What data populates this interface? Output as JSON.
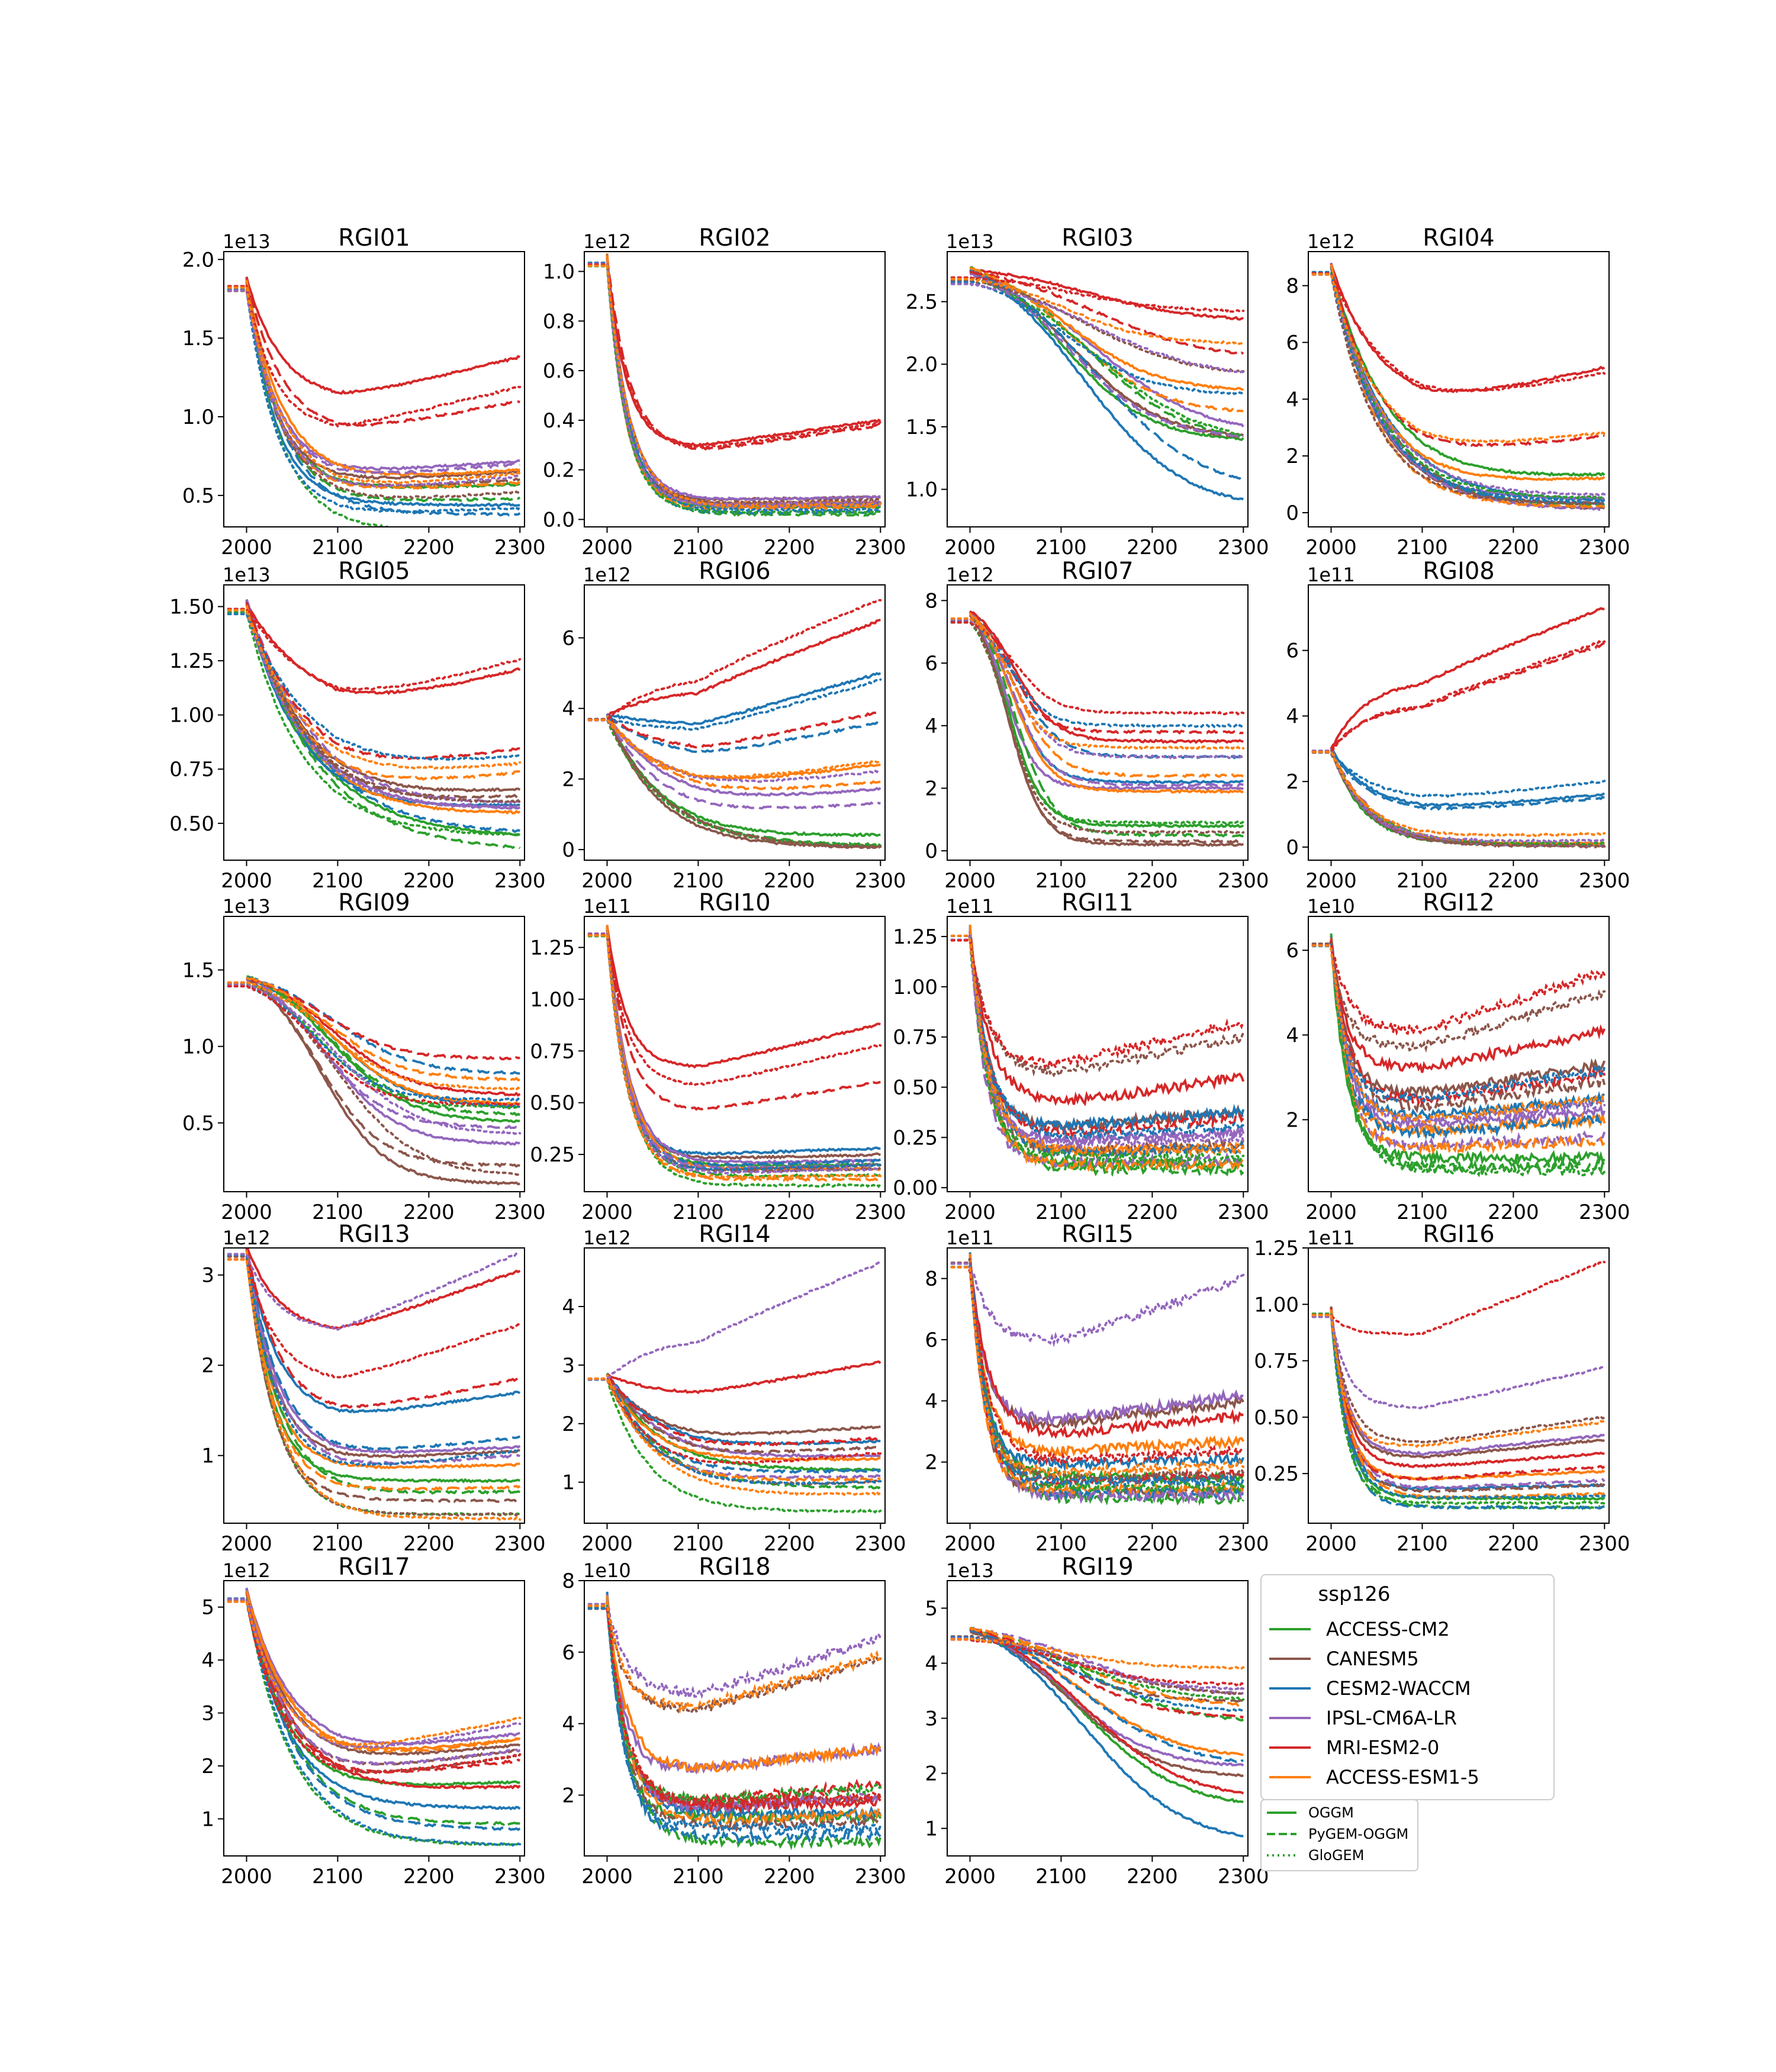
{
  "chart_data": {
    "type": "line",
    "colors": {
      "ACCESS-CM2": "#2ca02c",
      "CANESM5": "#8c564b",
      "CESM2-WACCM": "#1f77b4",
      "IPSL-CM6A-LR": "#9467bd",
      "MRI-ESM2-0": "#d62728",
      "ACCESS-ESM1-5": "#ff7f0e"
    },
    "legend": {
      "title": "ssp126",
      "gcms": [
        "ACCESS-CM2",
        "CANESM5",
        "CESM2-WACCM",
        "IPSL-CM6A-LR",
        "MRI-ESM2-0",
        "ACCESS-ESM1-5"
      ],
      "models": [
        "OGGM",
        "PyGEM-OGGM",
        "GloGEM"
      ],
      "placement": "lower-right"
    },
    "xticks": [
      2000,
      2100,
      2200,
      2300
    ],
    "xlim": [
      1975,
      2305
    ],
    "panels": [
      {
        "title": "RGI01",
        "mult": "1e13",
        "ylim": [
          0.3,
          2.05
        ],
        "yticks": [
          "0.5",
          "1.0",
          "1.5",
          "2.0"
        ],
        "yvals": [
          0.5,
          1.0,
          1.5,
          2.0
        ],
        "ystart": 1.87,
        "ystart_main": 1.96,
        "dstart": 1.96,
        "gstart": 1.87,
        "kind": "decay",
        "ends": {
          "OGGM": [
            0.57,
            0.65,
            0.44,
            0.72,
            1.38,
            0.66
          ],
          "PyGEM-OGGM": [
            0.48,
            0.6,
            0.38,
            0.7,
            1.1,
            0.58
          ],
          "GloGEM": [
            0.27,
            0.52,
            0.42,
            0.62,
            1.19,
            0.64
          ]
        },
        "tau": 35
      },
      {
        "title": "RGI02",
        "mult": "1e12",
        "ylim": [
          -0.03,
          1.08
        ],
        "yticks": [
          "0.0",
          "0.2",
          "0.4",
          "0.6",
          "0.8",
          "1.0"
        ],
        "yvals": [
          0,
          0.2,
          0.4,
          0.6,
          0.8,
          1.0
        ],
        "ystart": 1.06,
        "kind": "decay",
        "ends": {
          "OGGM": [
            0.05,
            0.09,
            0.06,
            0.09,
            0.4,
            0.07
          ],
          "PyGEM-OGGM": [
            0.02,
            0.07,
            0.03,
            0.06,
            0.38,
            0.05
          ],
          "GloGEM": [
            0.03,
            0.08,
            0.04,
            0.07,
            0.39,
            0.06
          ]
        },
        "tau": 22
      },
      {
        "title": "RGI03",
        "mult": "1e13",
        "ylim": [
          0.7,
          2.9
        ],
        "yticks": [
          "1.0",
          "1.5",
          "2.0",
          "2.5"
        ],
        "yvals": [
          1.0,
          1.5,
          2.0,
          2.5
        ],
        "ystart": 2.75,
        "kind": "slow",
        "ends": {
          "OGGM": [
            1.38,
            1.4,
            0.83,
            1.42,
            2.34,
            1.78
          ],
          "PyGEM-OGGM": [
            1.35,
            1.38,
            0.95,
            1.4,
            2.03,
            1.6
          ],
          "GloGEM": [
            1.34,
            1.9,
            1.75,
            1.88,
            2.42,
            2.16
          ]
        },
        "tau": 120
      },
      {
        "title": "RGI04",
        "mult": "1e12",
        "ylim": [
          -0.5,
          9.2
        ],
        "yticks": [
          "0",
          "2",
          "4",
          "6",
          "8"
        ],
        "yvals": [
          0,
          2,
          4,
          6,
          8
        ],
        "ystart": 8.7,
        "kind": "decay",
        "ends": {
          "OGGM": [
            1.3,
            0.3,
            0.4,
            0.5,
            5.1,
            1.2
          ],
          "PyGEM-OGGM": [
            0.2,
            0.1,
            0.3,
            0.1,
            2.7,
            0.2
          ],
          "GloGEM": [
            0.5,
            0.3,
            0.4,
            0.6,
            4.9,
            2.8
          ]
        },
        "tau": 55
      },
      {
        "title": "RGI05",
        "mult": "1e13",
        "ylim": [
          0.33,
          1.6
        ],
        "yticks": [
          "0.50",
          "0.75",
          "1.00",
          "1.25",
          "1.50"
        ],
        "yvals": [
          0.5,
          0.75,
          1.0,
          1.25,
          1.5
        ],
        "ystart": 1.52,
        "kind": "decay",
        "ends": {
          "OGGM": [
            0.43,
            0.65,
            0.58,
            0.56,
            1.2,
            0.54
          ],
          "PyGEM-OGGM": [
            0.37,
            0.62,
            0.44,
            0.58,
            0.84,
            0.73
          ],
          "GloGEM": [
            0.44,
            0.59,
            0.8,
            0.57,
            1.25,
            0.77
          ]
        },
        "tau": 70
      },
      {
        "title": "RGI06",
        "mult": "1e12",
        "ylim": [
          -0.3,
          7.5
        ],
        "yticks": [
          "0",
          "2",
          "4",
          "6"
        ],
        "yvals": [
          0,
          2,
          4,
          6
        ],
        "ystart": 3.8,
        "kind": "decay",
        "ends": {
          "OGGM": [
            0.4,
            0.05,
            5.0,
            1.7,
            6.5,
            2.4
          ],
          "PyGEM-OGGM": [
            0.1,
            0.05,
            3.6,
            1.3,
            3.9,
            1.9
          ],
          "GloGEM": [
            0.1,
            0.03,
            4.8,
            2.2,
            7.1,
            2.5
          ]
        },
        "tau": 60
      },
      {
        "title": "RGI07",
        "mult": "1e12",
        "ylim": [
          -0.3,
          8.5
        ],
        "yticks": [
          "0",
          "2",
          "4",
          "6",
          "8"
        ],
        "yvals": [
          0,
          2,
          4,
          6,
          8
        ],
        "ystart": 7.6,
        "kind": "slow",
        "ends": {
          "OGGM": [
            0.8,
            0.2,
            2.2,
            2.0,
            3.5,
            1.9
          ],
          "PyGEM-OGGM": [
            0.5,
            0.3,
            3.0,
            2.1,
            3.8,
            2.4
          ],
          "GloGEM": [
            0.9,
            0.6,
            4.0,
            3.0,
            4.4,
            3.3
          ]
        },
        "tau": 45
      },
      {
        "title": "RGI08",
        "mult": "1e11",
        "ylim": [
          -0.4,
          8.0
        ],
        "yticks": [
          "0",
          "2",
          "4",
          "6"
        ],
        "yvals": [
          0,
          2,
          4,
          6
        ],
        "ystart": 3.0,
        "kind": "decay",
        "ends": {
          "OGGM": [
            0.1,
            0.05,
            1.6,
            0.1,
            7.3,
            0.1
          ],
          "PyGEM-OGGM": [
            0.05,
            0.02,
            1.5,
            0.05,
            6.2,
            0.1
          ],
          "GloGEM": [
            0.1,
            0.05,
            2.0,
            0.2,
            6.3,
            0.4
          ]
        },
        "tau": 40
      },
      {
        "title": "RGI09",
        "mult": "1e13",
        "ylim": [
          0.05,
          1.85
        ],
        "yticks": [
          "0.5",
          "1.0",
          "1.5"
        ],
        "yvals": [
          0.5,
          1.0,
          1.5
        ],
        "ystart": 1.45,
        "kind": "slow",
        "ends": {
          "OGGM": [
            0.5,
            0.1,
            0.6,
            0.36,
            0.68,
            0.62
          ],
          "PyGEM-OGGM": [
            0.55,
            0.22,
            0.82,
            0.47,
            0.92,
            0.78
          ],
          "GloGEM": [
            0.6,
            0.15,
            0.65,
            0.42,
            0.62,
            0.72
          ]
        },
        "tau": 85
      },
      {
        "title": "RGI10",
        "mult": "1e11",
        "ylim": [
          0.07,
          1.4
        ],
        "yticks": [
          "0.25",
          "0.50",
          "0.75",
          "1.00",
          "1.25"
        ],
        "yvals": [
          0.25,
          0.5,
          0.75,
          1.0,
          1.25
        ],
        "ystart": 1.35,
        "kind": "decay",
        "ends": {
          "OGGM": [
            0.2,
            0.25,
            0.28,
            0.22,
            0.88,
            0.18
          ],
          "PyGEM-OGGM": [
            0.15,
            0.18,
            0.22,
            0.2,
            0.6,
            0.13
          ],
          "GloGEM": [
            0.1,
            0.2,
            0.2,
            0.18,
            0.78,
            0.15
          ]
        },
        "tau": 22
      },
      {
        "title": "RGI11",
        "mult": "1e11",
        "ylim": [
          -0.02,
          1.35
        ],
        "yticks": [
          "0.00",
          "0.25",
          "0.50",
          "0.75",
          "1.00",
          "1.25"
        ],
        "yvals": [
          0,
          0.25,
          0.5,
          0.75,
          1.0,
          1.25
        ],
        "ystart": 1.28,
        "kind": "decay",
        "ends": {
          "OGGM": [
            0.12,
            0.38,
            0.38,
            0.28,
            0.55,
            0.2
          ],
          "PyGEM-OGGM": [
            0.09,
            0.22,
            0.2,
            0.14,
            0.35,
            0.12
          ],
          "GloGEM": [
            0.15,
            0.75,
            0.3,
            0.25,
            0.82,
            0.2
          ]
        },
        "tau": 20
      },
      {
        "title": "RGI12",
        "mult": "1e10",
        "ylim": [
          0.3,
          6.8
        ],
        "yticks": [
          "2",
          "4",
          "6"
        ],
        "yvals": [
          2,
          4,
          6
        ],
        "ystart": 6.3,
        "kind": "decay",
        "ends": {
          "OGGM": [
            1.1,
            3.3,
            2.5,
            2.2,
            4.1,
            2.0
          ],
          "PyGEM-OGGM": [
            0.9,
            2.9,
            2.0,
            1.6,
            3.1,
            1.5
          ],
          "GloGEM": [
            0.8,
            5.0,
            3.2,
            2.4,
            5.5,
            2.5
          ]
        },
        "tau": 18
      },
      {
        "title": "RGI13",
        "mult": "1e12",
        "ylim": [
          0.25,
          3.3
        ],
        "yticks": [
          "1",
          "2",
          "3"
        ],
        "yvals": [
          1,
          2,
          3
        ],
        "ystart": 3.3,
        "kind": "decay",
        "ends": {
          "OGGM": [
            0.72,
            1.05,
            1.7,
            1.1,
            3.05,
            0.9
          ],
          "PyGEM-OGGM": [
            0.6,
            0.5,
            1.2,
            1.0,
            1.85,
            0.65
          ],
          "GloGEM": [
            0.35,
            0.35,
            1.05,
            3.25,
            2.45,
            0.3
          ]
        },
        "tau": 32
      },
      {
        "title": "RGI14",
        "mult": "1e12",
        "ylim": [
          0.3,
          5.0
        ],
        "yticks": [
          "1",
          "2",
          "3",
          "4"
        ],
        "yvals": [
          1,
          2,
          3,
          4
        ],
        "ystart": 2.85,
        "kind": "decay",
        "ends": {
          "OGGM": [
            1.2,
            1.95,
            1.7,
            1.45,
            3.05,
            1.4
          ],
          "PyGEM-OGGM": [
            0.9,
            1.6,
            1.2,
            1.1,
            1.75,
            1.05
          ],
          "GloGEM": [
            0.5,
            1.0,
            1.0,
            4.75,
            1.5,
            0.8
          ]
        },
        "tau": 50
      },
      {
        "title": "RGI15",
        "mult": "1e11",
        "ylim": [
          0.0,
          9.0
        ],
        "yticks": [
          "2",
          "4",
          "6",
          "8"
        ],
        "yvals": [
          2,
          4,
          6,
          8
        ],
        "ystart": 8.7,
        "kind": "decay",
        "ends": {
          "OGGM": [
            1.5,
            4.0,
            2.1,
            4.2,
            3.5,
            2.7
          ],
          "PyGEM-OGGM": [
            0.8,
            1.1,
            1.0,
            0.9,
            1.6,
            1.2
          ],
          "GloGEM": [
            1.2,
            1.6,
            1.4,
            8.0,
            2.4,
            1.9
          ]
        },
        "tau": 18
      },
      {
        "title": "RGI16",
        "mult": "1e11",
        "ylim": [
          0.03,
          1.25
        ],
        "yticks": [
          "0.25",
          "0.50",
          "0.75",
          "1.00",
          "1.25"
        ],
        "yvals": [
          0.25,
          0.5,
          0.75,
          1.0,
          1.25
        ],
        "ystart": 0.98,
        "kind": "decay",
        "ends": {
          "OGGM": [
            0.14,
            0.4,
            0.2,
            0.42,
            0.34,
            0.26
          ],
          "PyGEM-OGGM": [
            0.1,
            0.2,
            0.1,
            0.22,
            0.28,
            0.16
          ],
          "GloGEM": [
            0.12,
            0.5,
            0.15,
            0.72,
            1.19,
            0.48
          ]
        },
        "tau": 18
      },
      {
        "title": "RGI17",
        "mult": "1e12",
        "ylim": [
          0.3,
          5.5
        ],
        "yticks": [
          "1",
          "2",
          "3",
          "4",
          "5"
        ],
        "yvals": [
          1,
          2,
          3,
          4,
          5
        ],
        "ystart": 5.3,
        "kind": "decay",
        "ends": {
          "OGGM": [
            1.7,
            2.4,
            1.2,
            2.6,
            1.6,
            2.5
          ],
          "PyGEM-OGGM": [
            0.9,
            2.3,
            0.8,
            2.3,
            2.1,
            2.5
          ],
          "GloGEM": [
            0.5,
            2.2,
            0.5,
            2.8,
            2.2,
            2.9
          ]
        },
        "tau": 45
      },
      {
        "title": "RGI18",
        "mult": "1e10",
        "ylim": [
          0.3,
          8.0
        ],
        "yticks": [
          "2",
          "4",
          "6",
          "8"
        ],
        "yvals": [
          2,
          4,
          6,
          8
        ],
        "ystart": 7.5,
        "kind": "decay",
        "ends": {
          "OGGM": [
            1.4,
            1.9,
            1.5,
            3.3,
            1.8,
            3.3
          ],
          "PyGEM-OGGM": [
            0.7,
            1.3,
            0.9,
            2.0,
            2.3,
            1.5
          ],
          "GloGEM": [
            2.2,
            5.8,
            1.1,
            6.4,
            2.0,
            5.9
          ]
        },
        "tau": 20
      },
      {
        "title": "RGI19",
        "mult": "1e13",
        "ylim": [
          0.5,
          5.5
        ],
        "yticks": [
          "1",
          "2",
          "3",
          "4",
          "5"
        ],
        "yvals": [
          1,
          2,
          3,
          4,
          5
        ],
        "ystart": 4.6,
        "kind": "slow",
        "ends": {
          "OGGM": [
            1.35,
            1.9,
            0.68,
            2.1,
            1.5,
            2.25
          ],
          "PyGEM-OGGM": [
            2.9,
            3.3,
            2.1,
            3.4,
            3.0,
            3.2
          ],
          "GloGEM": [
            3.3,
            3.4,
            3.1,
            3.5,
            3.6,
            3.9
          ]
        },
        "tau": 110
      }
    ]
  }
}
